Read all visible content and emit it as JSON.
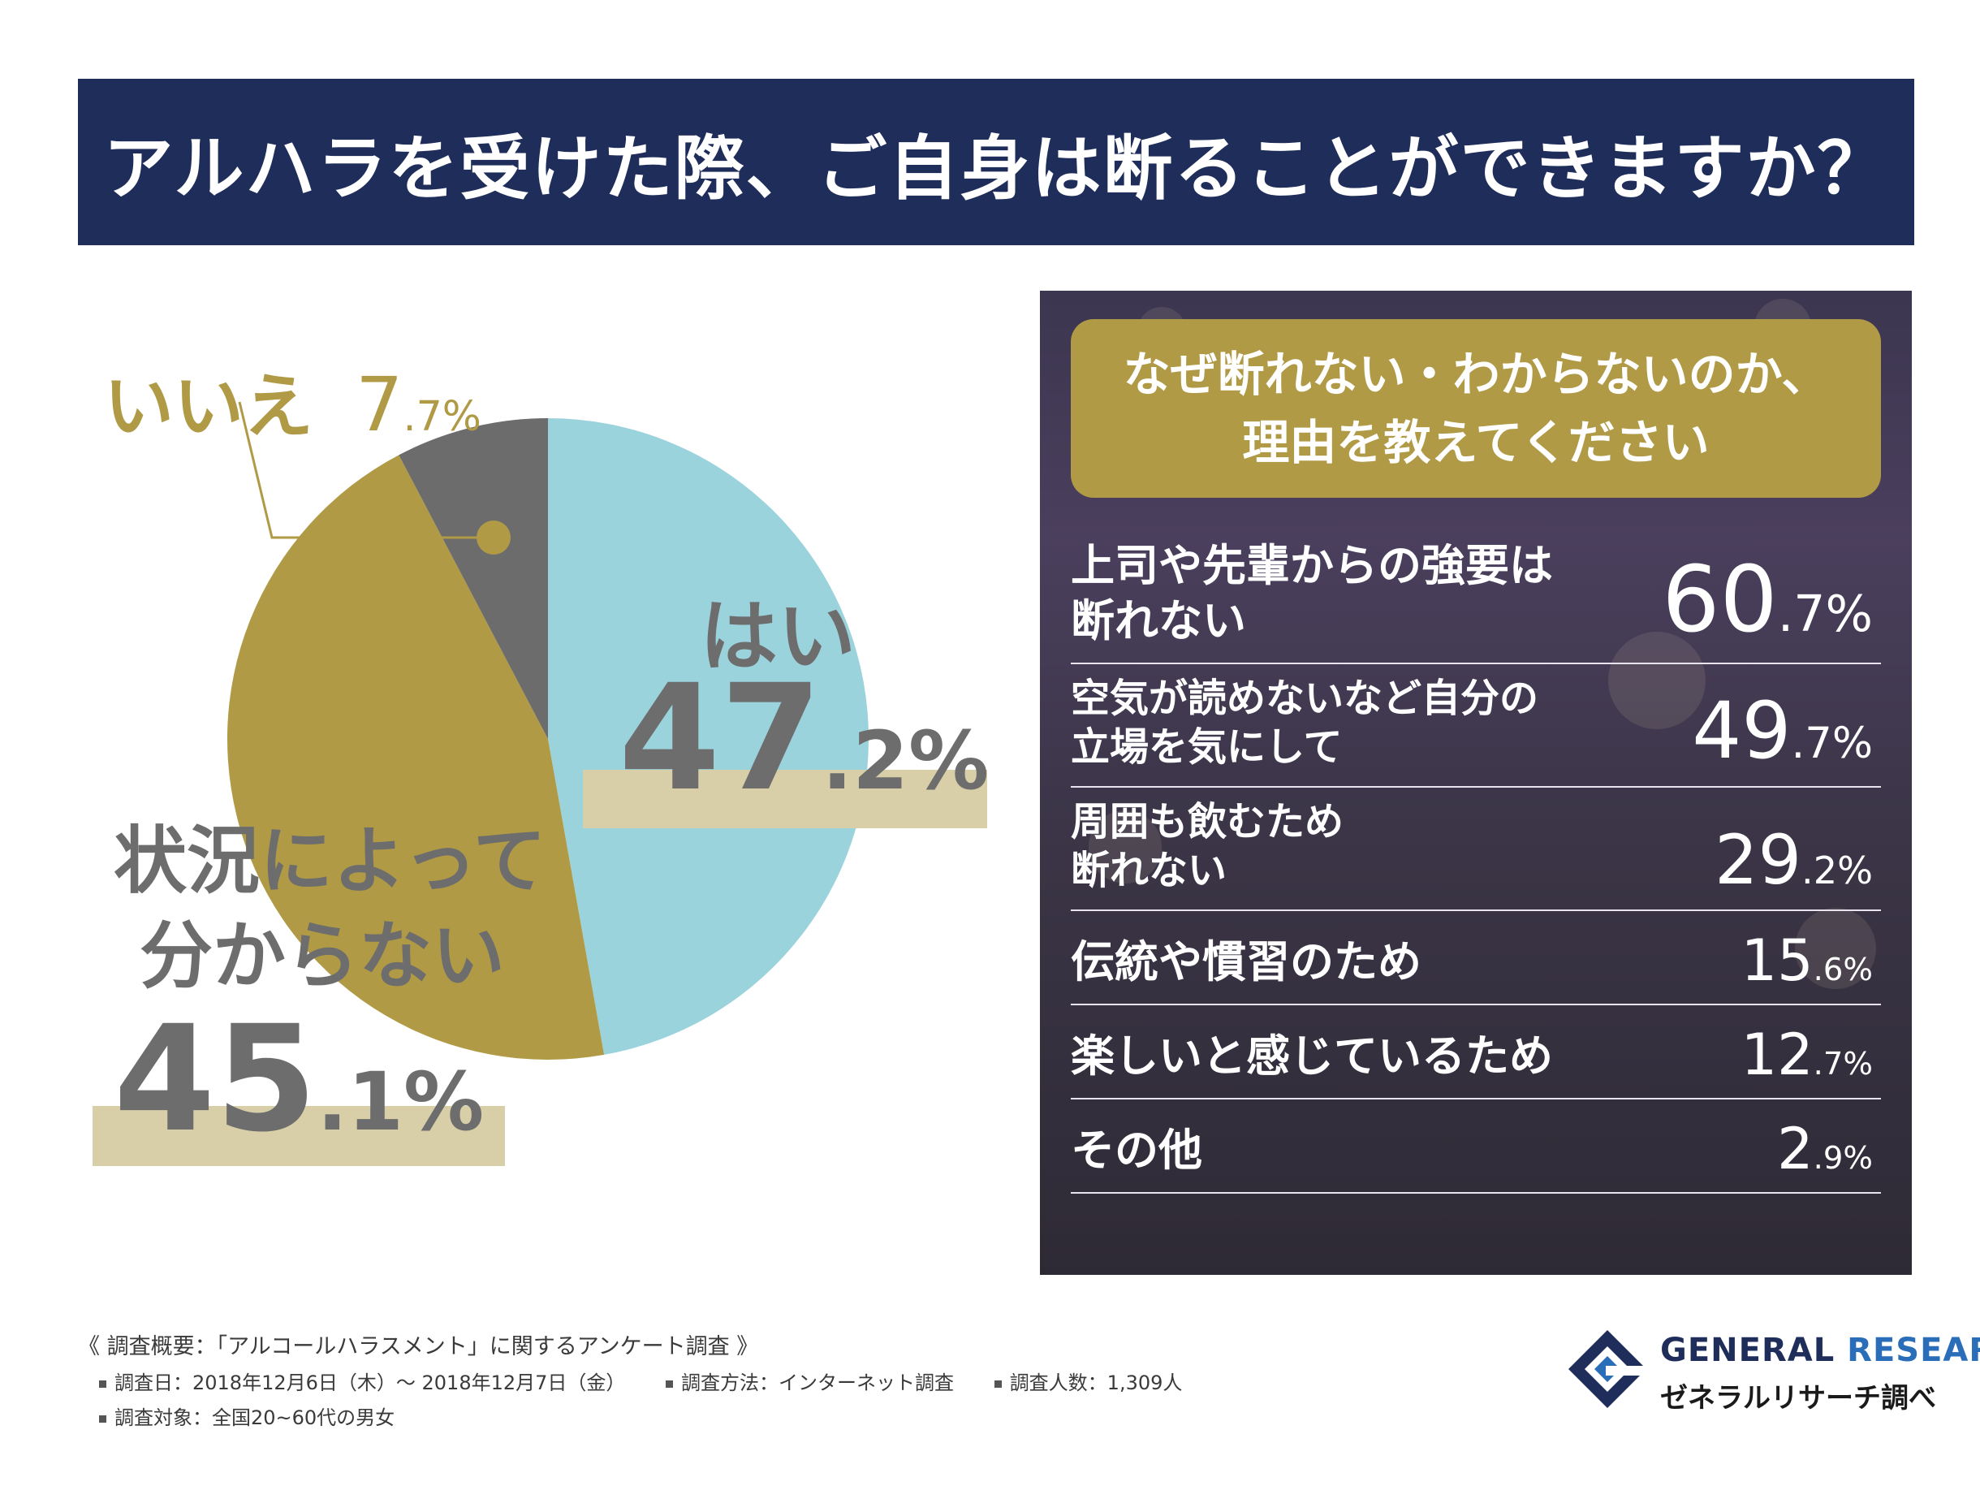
{
  "title": "アルハラを受けた際、ご自身は断ることができますか？",
  "chart_data": [
    {
      "type": "pie",
      "slices": [
        {
          "label": "はい",
          "value": 47.2,
          "int": "47",
          "dec": ".2%",
          "color": "#9ad3dc"
        },
        {
          "label_lines": [
            "状況によって",
            "分からない"
          ],
          "value": 45.1,
          "int": "45",
          "dec": ".1%",
          "color": "#b09a45"
        },
        {
          "label": "いいえ",
          "value": 7.7,
          "int": "7",
          "dec": ".7%",
          "color": "#6c6c6c"
        }
      ]
    },
    {
      "type": "table",
      "title_lines": [
        "なぜ断れない・わからないのか、",
        "理由を教えてください"
      ],
      "rows": [
        {
          "label_lines": [
            "上司や先輩からの強要は",
            "断れない"
          ],
          "value": 60.7,
          "int": "60",
          "dec": ".7%"
        },
        {
          "label_lines": [
            "空気が読めないなど自分の",
            "立場を気にして"
          ],
          "value": 49.7,
          "int": "49",
          "dec": ".7%"
        },
        {
          "label_lines": [
            "周囲も飲むため",
            "断れない"
          ],
          "value": 29.2,
          "int": "29",
          "dec": ".2%"
        },
        {
          "label_lines": [
            "伝統や慣習のため"
          ],
          "value": 15.6,
          "int": "15",
          "dec": ".6%"
        },
        {
          "label_lines": [
            "楽しいと感じているため"
          ],
          "value": 12.7,
          "int": "12",
          "dec": ".7%"
        },
        {
          "label_lines": [
            "その他"
          ],
          "value": 2.9,
          "int": "2",
          "dec": ".9%"
        }
      ]
    }
  ],
  "footer": {
    "title": "《 調査概要：「アルコールハラスメント」に関するアンケート調査 》",
    "date": "調査日：2018年12月6日（木）～ 2018年12月7日（金）",
    "method": "調査方法：インターネット調査",
    "count": "調査人数：1,309人",
    "target": "調査対象：全国20~60代の男女"
  },
  "logo": {
    "en_main": "GENERAL ",
    "en_accent": "RESEARCH",
    "ja": "ゼネラルリサーチ調べ",
    "icon": "general-research-logo-icon"
  }
}
